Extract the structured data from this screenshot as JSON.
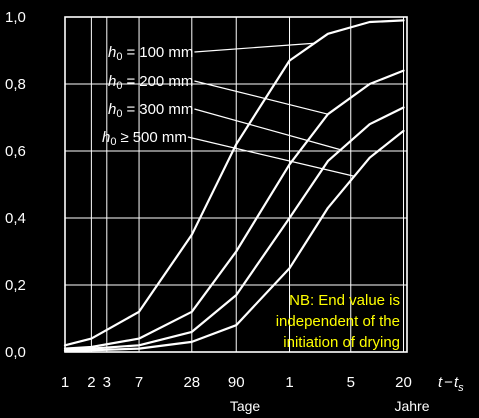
{
  "chart_data": {
    "type": "line",
    "grid": true,
    "ylim": [
      0,
      1
    ],
    "y_ticks": [
      "0,0",
      "0,2",
      "0,4",
      "0,6",
      "0,8",
      "1,0"
    ],
    "y_tick_values": [
      0,
      0.2,
      0.4,
      0.6,
      0.8,
      1.0
    ],
    "x_ticks": [
      "1",
      "2",
      "3",
      "7",
      "28",
      "90",
      "1",
      "5",
      "20"
    ],
    "x_tick_values_days": [
      1,
      2,
      3,
      7,
      28,
      90,
      365,
      1825,
      7300
    ],
    "x_unit_days": "Tage",
    "x_unit_years": "Jahre",
    "xlabel_var": "t",
    "xlabel_sub": "s",
    "xlabel_minus": "−",
    "series": [
      {
        "h_var": "h",
        "h_sub": "0",
        "op": "=",
        "value": "100 mm",
        "x_days": [
          1,
          2,
          7,
          28,
          90,
          365,
          1000,
          3000,
          7300
        ],
        "y": [
          0.02,
          0.04,
          0.12,
          0.35,
          0.62,
          0.87,
          0.95,
          0.985,
          0.99
        ]
      },
      {
        "h_var": "h",
        "h_sub": "0",
        "op": "=",
        "value": "200 mm",
        "x_days": [
          1,
          2,
          7,
          28,
          90,
          365,
          1000,
          3000,
          7300
        ],
        "y": [
          0.01,
          0.015,
          0.04,
          0.12,
          0.3,
          0.56,
          0.71,
          0.8,
          0.84
        ]
      },
      {
        "h_var": "h",
        "h_sub": "0",
        "op": "=",
        "value": "300 mm",
        "x_days": [
          1,
          2,
          7,
          28,
          90,
          365,
          1000,
          3000,
          7300
        ],
        "y": [
          0.005,
          0.01,
          0.02,
          0.06,
          0.17,
          0.4,
          0.57,
          0.68,
          0.73
        ]
      },
      {
        "h_var": "h",
        "h_sub": "0",
        "op": "≥",
        "value": "500 mm",
        "x_days": [
          1,
          2,
          7,
          28,
          90,
          365,
          1000,
          3000,
          7300
        ],
        "y": [
          0.003,
          0.005,
          0.01,
          0.03,
          0.08,
          0.25,
          0.43,
          0.58,
          0.66
        ]
      }
    ],
    "annotation": [
      "NB: End value is",
      "independent of the",
      "initiation of drying"
    ],
    "colors": {
      "background": "#000000",
      "lines": "#ffffff",
      "grid": "#ffffff",
      "annotation": "#ffff00"
    }
  }
}
